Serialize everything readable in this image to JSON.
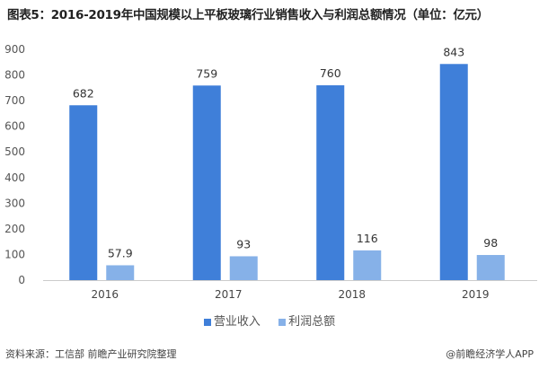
{
  "title": "图表5：2016-2019年中国规模以上平板玻璃行业销售收入与利润总额情况（单位：亿元）",
  "source": "资料来源：工信部 前瞻产业研究院整理",
  "brand": "@前瞻经济学人APP",
  "chart_data": {
    "type": "bar",
    "categories": [
      "2016",
      "2017",
      "2018",
      "2019"
    ],
    "series": [
      {
        "name": "营业收入",
        "values": [
          682,
          759,
          760,
          843
        ],
        "labels": [
          "682",
          "759",
          "760",
          "843"
        ],
        "color": "#3F7FD9"
      },
      {
        "name": "利润总额",
        "values": [
          57.9,
          93,
          116,
          98
        ],
        "labels": [
          "57.9",
          "93",
          "116",
          "98"
        ],
        "color": "#86B1E8"
      }
    ],
    "ylim": [
      0,
      900
    ],
    "yticks": [
      "0",
      "100",
      "200",
      "300",
      "400",
      "500",
      "600",
      "700",
      "800",
      "900"
    ],
    "grid": false,
    "legend": "bottom"
  }
}
